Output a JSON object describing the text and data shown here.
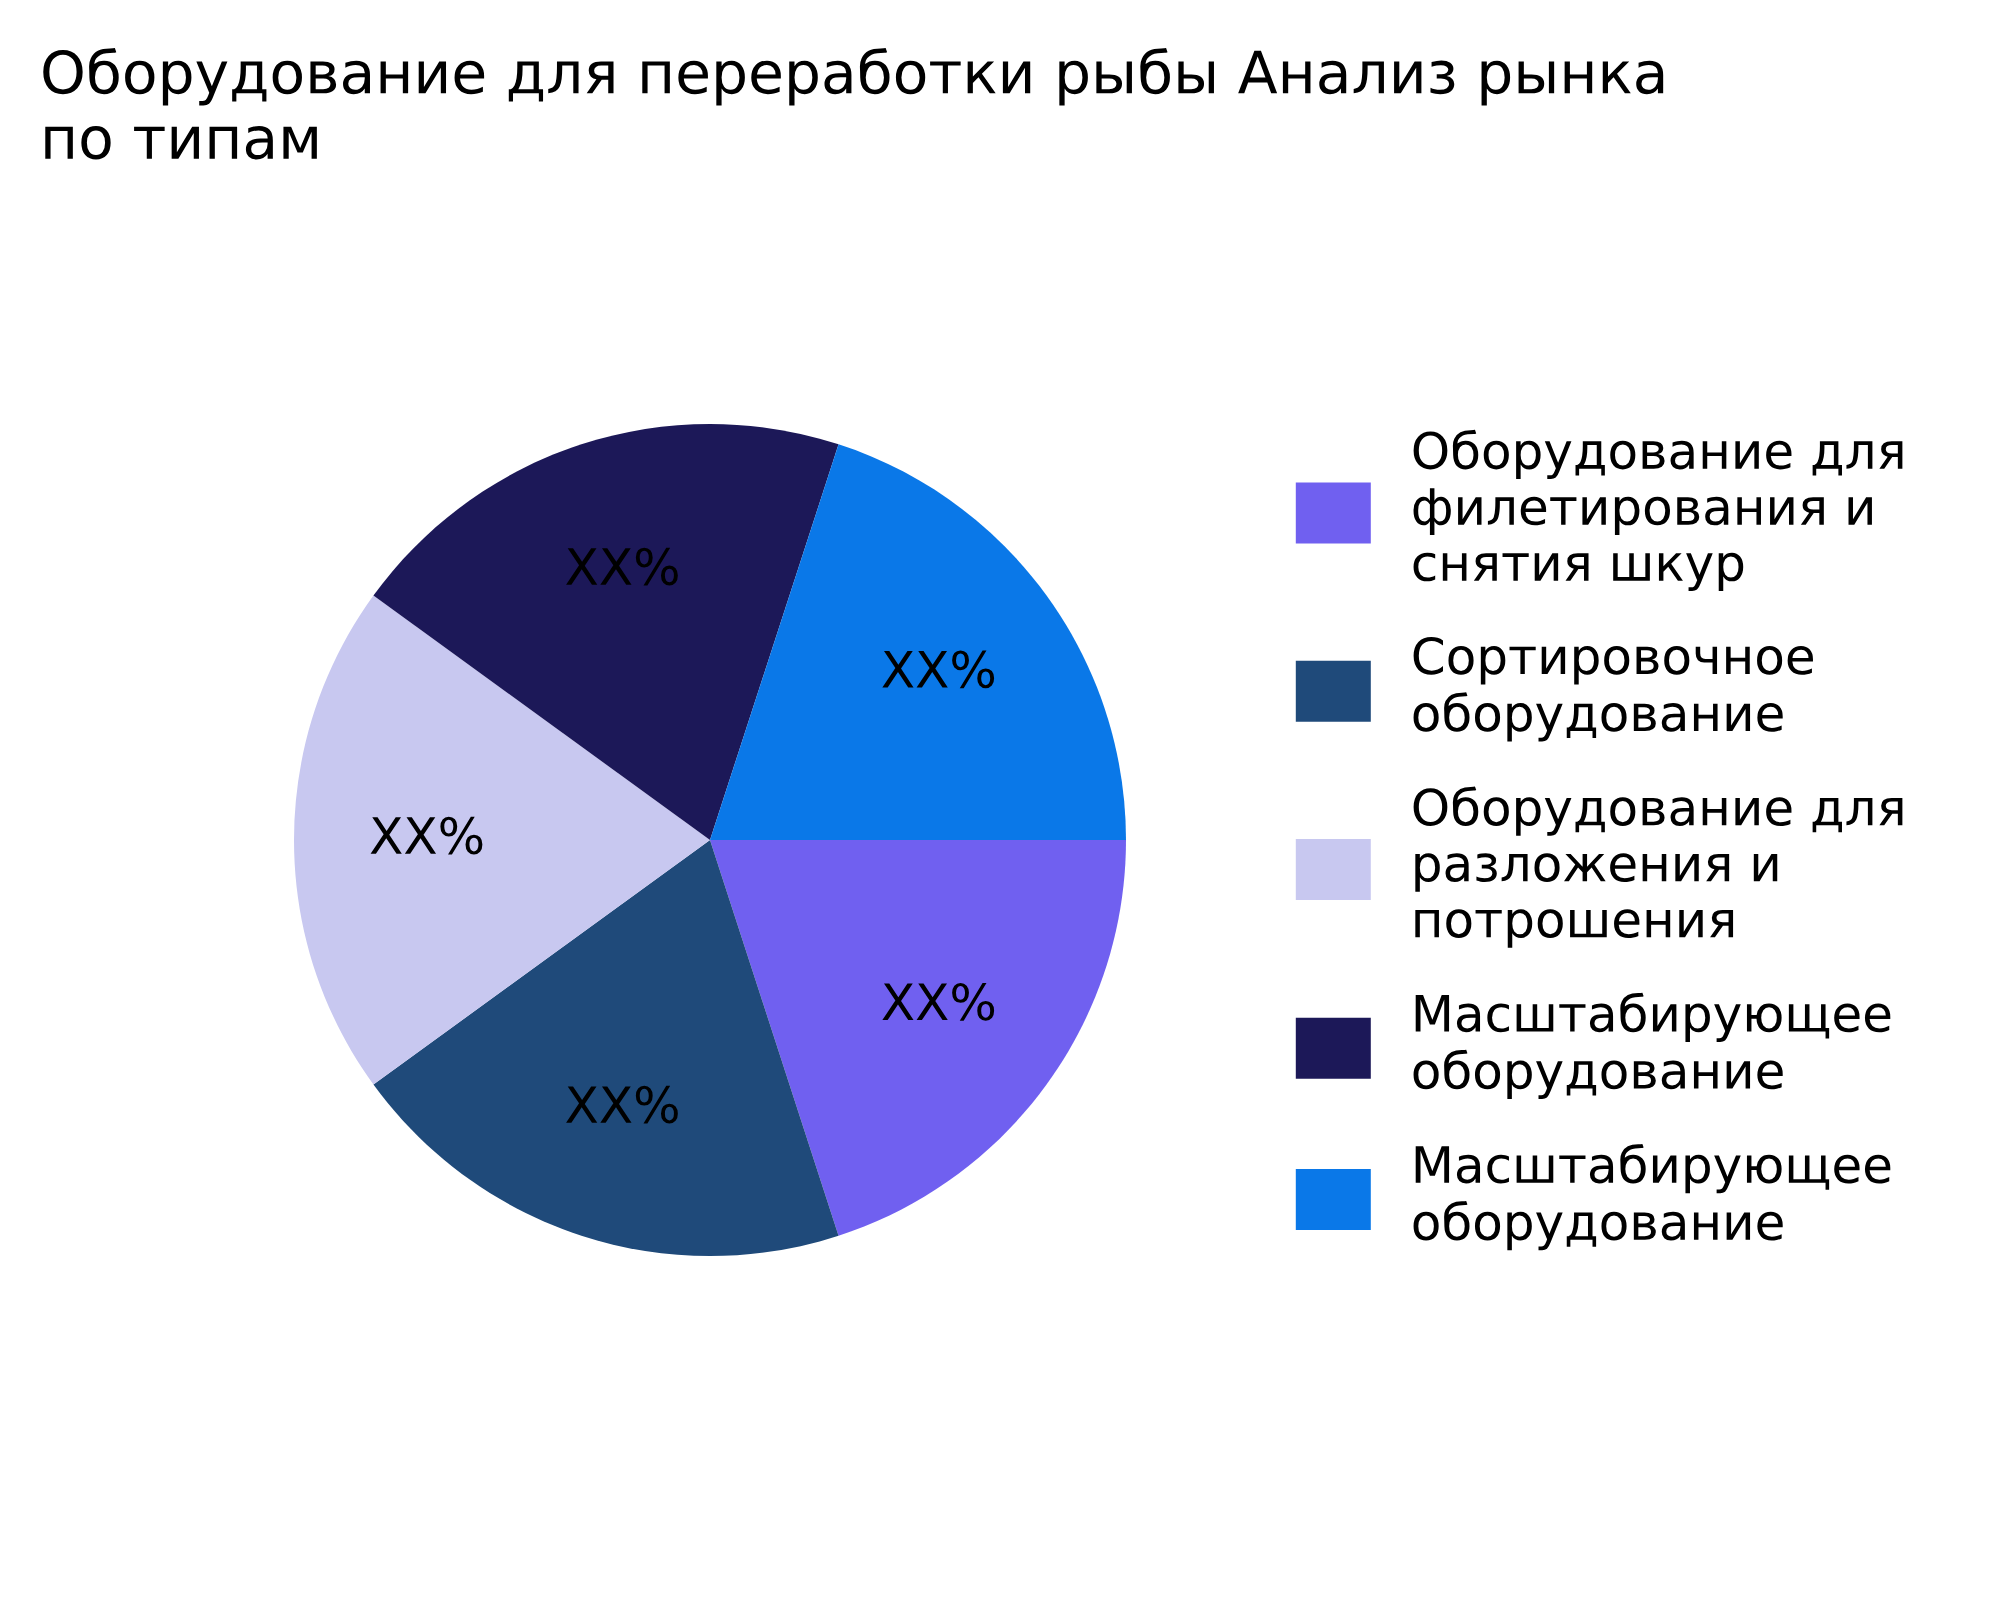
{
  "chart_data": {
    "type": "pie",
    "title": "Оборудование для переработки рыбы Анализ рынка по типам",
    "categories": [
      "Оборудование для филетирования и снятия шкур",
      "Сортировочное оборудование",
      "Оборудование для разложения и потрошения",
      "Масштабирующее оборудование",
      "Масштабирующее оборудование"
    ],
    "values": [
      20,
      20,
      20,
      20,
      20
    ],
    "value_labels": [
      "XX%",
      "XX%",
      "XX%",
      "XX%",
      "XX%"
    ],
    "colors": [
      "#7060f0",
      "#1f4a7a",
      "#c8c8f0",
      "#1c1858",
      "#0a78e8"
    ],
    "legend": "right"
  }
}
